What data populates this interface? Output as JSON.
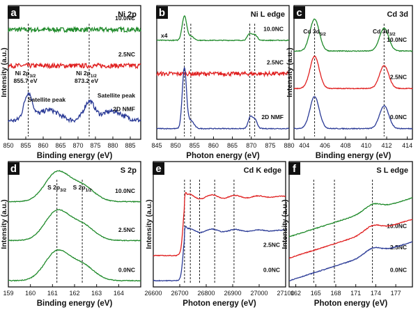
{
  "figure": {
    "panels": [
      {
        "letter": "a",
        "title": "Ni 2p",
        "xlabel": "Binding energy (eV)",
        "ylabel": "Intensity (a.u.)",
        "xticks": [
          "850",
          "855",
          "860",
          "865",
          "870",
          "875",
          "880",
          "885"
        ],
        "series_labels": [
          "10.0NC",
          "2.5NC",
          "2D NMF"
        ],
        "annotations": [
          "Satellite peak",
          "Satellite peak"
        ],
        "peaks": [
          {
            "name": "Ni 2p",
            "sub": "3/2",
            "value": "855.7 eV"
          },
          {
            "name": "Ni 2p",
            "sub": "1/2",
            "value": "873.2 eV"
          }
        ]
      },
      {
        "letter": "b",
        "title": "Ni L edge",
        "xlabel": "Photon energy (eV)",
        "ylabel": "",
        "xticks": [
          "845",
          "850",
          "855",
          "860",
          "865",
          "870",
          "875",
          "880"
        ],
        "series_labels": [
          "10.0NC",
          "2.5NC",
          "2D NMF"
        ],
        "annotations": [
          "x4"
        ]
      },
      {
        "letter": "c",
        "title": "Cd 3d",
        "xlabel": "Binding energy (eV)",
        "ylabel": "Intensity (a.u.)",
        "xticks": [
          "404",
          "406",
          "408",
          "410",
          "412",
          "414"
        ],
        "series_labels": [
          "10.0NC",
          "2.5NC",
          "0.0NC"
        ],
        "peaks": [
          {
            "name": "Cd 3d",
            "sub": "5/2"
          },
          {
            "name": "Cd 3d",
            "sub": "3/2"
          }
        ]
      },
      {
        "letter": "d",
        "title": "S 2p",
        "xlabel": "Binding energy (eV)",
        "ylabel": "Intensity (a.u.)",
        "xticks": [
          "159",
          "160",
          "161",
          "162",
          "163",
          "164"
        ],
        "series_labels": [
          "10.0NC",
          "2.5NC",
          "0.0NC"
        ],
        "peaks": [
          {
            "name": "S 2p",
            "sub": "3/2"
          },
          {
            "name": "S 2p",
            "sub": "1/2"
          }
        ]
      },
      {
        "letter": "e",
        "title": "Cd K edge",
        "xlabel": "Photon energy (eV)",
        "ylabel": "Intensity (a.u.)",
        "xticks": [
          "26600",
          "26700",
          "26800",
          "26900",
          "27000",
          "27100"
        ],
        "series_labels": [
          "2.5NC",
          "0.0NC"
        ]
      },
      {
        "letter": "f",
        "title": "S L edge",
        "xlabel": "Photon energy (eV)",
        "ylabel": "Intensity (a.u.)",
        "xticks": [
          "162",
          "165",
          "168",
          "171",
          "174",
          "177"
        ],
        "series_labels": [
          "10.0NC",
          "2.5NC",
          "0.0NC"
        ]
      }
    ]
  },
  "chart_data": [
    {
      "panel": "a",
      "type": "line",
      "xlim": [
        850,
        888
      ],
      "xlabel": "Binding energy (eV)",
      "ylabel": "Intensity (a.u.)",
      "series": [
        {
          "name": "10.0NC",
          "color": "#1f8a2a",
          "baseline": 0.82,
          "peaks": []
        },
        {
          "name": "2.5NC",
          "color": "#e02020",
          "baseline": 0.55,
          "peaks": []
        },
        {
          "name": "2D NMF",
          "color": "#2a3a96",
          "baseline": 0.14,
          "peaks": [
            [
              855.7,
              0.2,
              1.2
            ],
            [
              861.6,
              0.08,
              2.8
            ],
            [
              873.2,
              0.14,
              1.5
            ],
            [
              879.8,
              0.07,
              3
            ]
          ]
        }
      ],
      "vlines": [
        855.7,
        873.2
      ]
    },
    {
      "panel": "b",
      "type": "line",
      "xlim": [
        845,
        880
      ],
      "xlabel": "Photon energy (eV)",
      "series": [
        {
          "name": "10.0NC",
          "color": "#1f8a2a",
          "baseline": 0.74,
          "peaks": [
            [
              852.3,
              0.18,
              0.6
            ],
            [
              854,
              0.03,
              0.8
            ],
            [
              869.6,
              0.05,
              0.6
            ],
            [
              871,
              0.04,
              0.6
            ]
          ]
        },
        {
          "name": "2.5NC",
          "color": "#e02020",
          "baseline": 0.49,
          "peaks": []
        },
        {
          "name": "2D NMF",
          "color": "#2a3a96",
          "baseline": 0.08,
          "peaks": [
            [
              852.3,
              0.45,
              0.55
            ],
            [
              854,
              0.06,
              0.8
            ],
            [
              869.7,
              0.08,
              0.55
            ],
            [
              870.9,
              0.07,
              0.6
            ]
          ]
        }
      ],
      "vlines": [
        852.3,
        854,
        869.6,
        870.9
      ]
    },
    {
      "panel": "c",
      "type": "line",
      "xlim": [
        403,
        414.5
      ],
      "xlabel": "Binding energy (eV)",
      "ylabel": "Intensity (a.u.)",
      "series": [
        {
          "name": "10.0NC",
          "color": "#1f8a2a",
          "baseline": 0.66,
          "peaks": [
            [
              405,
              0.24,
              0.45
            ],
            [
              411.75,
              0.17,
              0.45
            ]
          ]
        },
        {
          "name": "2.5NC",
          "color": "#e02020",
          "baseline": 0.38,
          "peaks": [
            [
              405,
              0.24,
              0.45
            ],
            [
              411.75,
              0.17,
              0.45
            ]
          ]
        },
        {
          "name": "0.0NC",
          "color": "#2a3a96",
          "baseline": 0.08,
          "peaks": [
            [
              405,
              0.24,
              0.45
            ],
            [
              411.75,
              0.17,
              0.45
            ]
          ]
        }
      ],
      "vlines": [
        405,
        411.75
      ]
    },
    {
      "panel": "d",
      "type": "line",
      "xlim": [
        159,
        165
      ],
      "xlabel": "Binding energy (eV)",
      "ylabel": "Intensity (a.u.)",
      "series": [
        {
          "name": "10.0NC",
          "color": "#1f8a2a",
          "baseline": 0.68,
          "peaks": [
            [
              161.2,
              0.23,
              0.55
            ],
            [
              162.35,
              0.12,
              0.55
            ]
          ]
        },
        {
          "name": "2.5NC",
          "color": "#1f8a2a",
          "baseline": 0.37,
          "peaks": [
            [
              161.2,
              0.23,
              0.55
            ],
            [
              162.35,
              0.12,
              0.55
            ]
          ]
        },
        {
          "name": "0.0NC",
          "color": "#1f8a2a",
          "baseline": 0.05,
          "peaks": [
            [
              161.2,
              0.23,
              0.55
            ],
            [
              162.35,
              0.12,
              0.55
            ]
          ]
        }
      ],
      "vlines": [
        161.2,
        162.35
      ]
    },
    {
      "panel": "e",
      "type": "line",
      "xlim": [
        26600,
        27100
      ],
      "xlabel": "Photon energy (eV)",
      "ylabel": "Intensity (a.u.)",
      "series": [
        {
          "name": "2.5NC",
          "color": "#e02020",
          "baseline": 0.25,
          "edge": 26712,
          "step": 0.47,
          "osc": 0.025
        },
        {
          "name": "0.0NC",
          "color": "#2a3a96",
          "baseline": 0.05,
          "edge": 26712,
          "step": 0.4,
          "osc": 0.02
        }
      ],
      "vlines": [
        26718,
        26740,
        26775,
        26832,
        26905
      ]
    },
    {
      "panel": "f",
      "type": "line",
      "xlim": [
        161,
        179.5
      ],
      "xlabel": "Photon energy (eV)",
      "ylabel": "Intensity (a.u.)",
      "series": [
        {
          "name": "10.0NC",
          "color": "#1f8a2a",
          "baseline": 0.4,
          "slope": 0.028
        },
        {
          "name": "2.5NC",
          "color": "#e02020",
          "baseline": 0.23,
          "slope": 0.028
        },
        {
          "name": "0.0NC",
          "color": "#2a3a96",
          "baseline": 0.05,
          "slope": 0.028
        }
      ],
      "vlines": [
        164.7,
        167.8,
        173.5
      ]
    }
  ]
}
